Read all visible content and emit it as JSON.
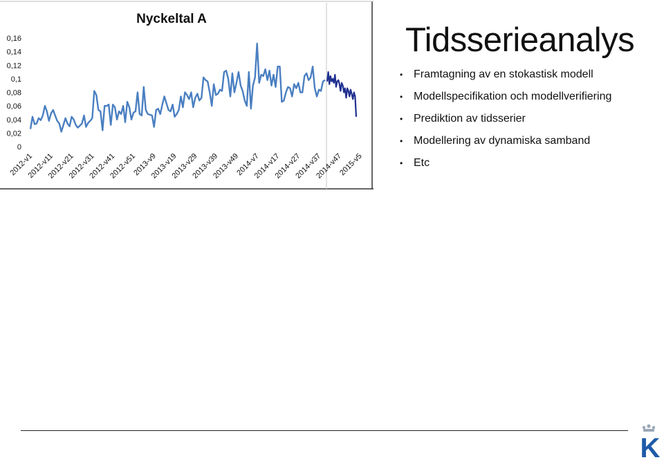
{
  "slide": {
    "title": "Tidsserieanalys",
    "bullets": [
      "Framtagning av en stokastisk modell",
      "Modellspecifikation och modellverifiering",
      "Prediktion av tidsserier",
      "Modellering av dynamiska samband",
      "Etc"
    ]
  },
  "logo": {
    "letter": "K",
    "color": "#1e5aa8",
    "crown_color": "#9aa8b8"
  },
  "chart_data": {
    "type": "line",
    "title": "Nyckeltal A",
    "xlabel": "",
    "ylabel": "",
    "ylim": [
      0,
      0.16
    ],
    "y_ticks": [
      "0",
      "0,02",
      "0,04",
      "0,06",
      "0,08",
      "0,1",
      "0,12",
      "0,14",
      "0,16"
    ],
    "x_tick_labels": [
      "2012-v1",
      "2012-v11",
      "2012-v21",
      "2012-v31",
      "2012-v41",
      "2012-v51",
      "2013-v9",
      "2013-v19",
      "2013-v29",
      "2013-v39",
      "2013-v49",
      "2014-v7",
      "2014-v17",
      "2014-v27",
      "2014-v37",
      "2014-v47",
      "2015-v5"
    ],
    "grid": false,
    "legend": "none",
    "series": [
      {
        "color": "#4a7fc1",
        "values": [
          0.026,
          0.044,
          0.033,
          0.034,
          0.042,
          0.039,
          0.046,
          0.06,
          0.052,
          0.038,
          0.049,
          0.054,
          0.046,
          0.038,
          0.034,
          0.022,
          0.032,
          0.042,
          0.034,
          0.03,
          0.044,
          0.04,
          0.032,
          0.028,
          0.031,
          0.034,
          0.046,
          0.029,
          0.035,
          0.038,
          0.042,
          0.082,
          0.076,
          0.054,
          0.052,
          0.024,
          0.06,
          0.06,
          0.062,
          0.032,
          0.062,
          0.058,
          0.04,
          0.052,
          0.048,
          0.06,
          0.036,
          0.066,
          0.058,
          0.04,
          0.05,
          0.052,
          0.08,
          0.048,
          0.046,
          0.088,
          0.054,
          0.048,
          0.047,
          0.046,
          0.029,
          0.054,
          0.056,
          0.048,
          0.062,
          0.074,
          0.064,
          0.054,
          0.052,
          0.062,
          0.044,
          0.048,
          0.054,
          0.074,
          0.058,
          0.08,
          0.076,
          0.07,
          0.08,
          0.058,
          0.072,
          0.078,
          0.068,
          0.072,
          0.102,
          0.098,
          0.096,
          0.08,
          0.06,
          0.092,
          0.076,
          0.078,
          0.084,
          0.082,
          0.11,
          0.112,
          0.1,
          0.074,
          0.108,
          0.08,
          0.094,
          0.11,
          0.09,
          0.082,
          0.068,
          0.06,
          0.11,
          0.056,
          0.09,
          0.102,
          0.152,
          0.094,
          0.106,
          0.104,
          0.114,
          0.098,
          0.112,
          0.09,
          0.106,
          0.088,
          0.118,
          0.118,
          0.066,
          0.068,
          0.08,
          0.088,
          0.086,
          0.074,
          0.092,
          0.086,
          0.094,
          0.08,
          0.08,
          0.104,
          0.108,
          0.098,
          0.102,
          0.118,
          0.086,
          0.074,
          0.084,
          0.082,
          0.096,
          0.098
        ]
      },
      {
        "color": "#1f2f8f",
        "values": [
          0.096,
          0.11,
          0.092,
          0.104,
          0.096,
          0.1,
          0.094,
          0.106,
          0.088,
          0.096,
          0.098,
          0.092,
          0.082,
          0.094,
          0.09,
          0.08,
          0.086,
          0.072,
          0.086,
          0.082,
          0.074,
          0.084,
          0.078,
          0.07,
          0.08,
          0.074,
          0.044
        ]
      }
    ]
  }
}
